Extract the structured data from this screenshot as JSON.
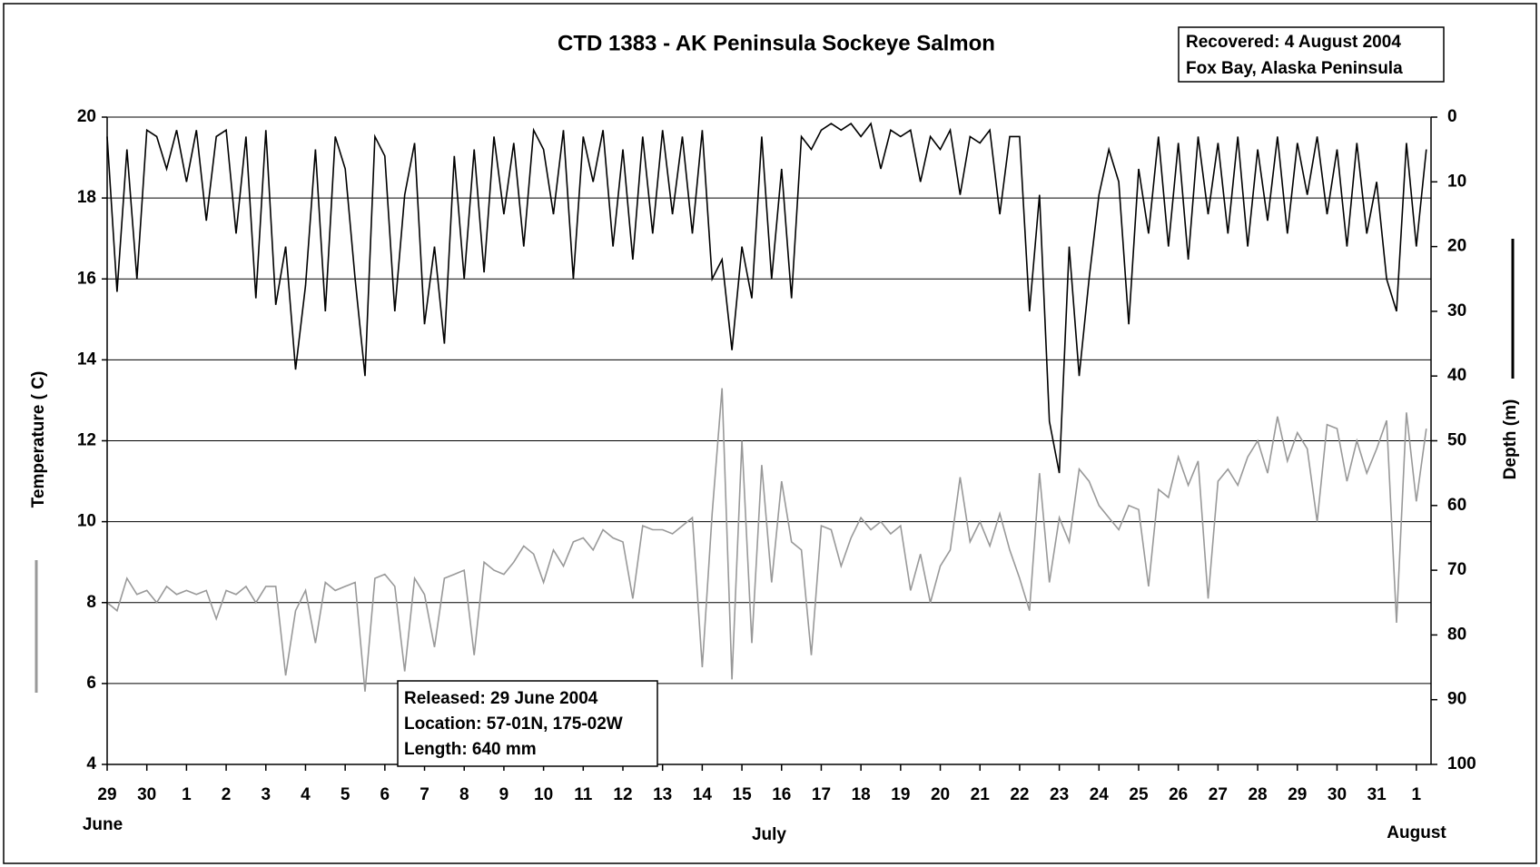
{
  "chart_data": {
    "type": "line",
    "title": "CTD 1383 - AK Peninsula Sockeye Salmon",
    "recovered_box": [
      "Recovered: 4 August 2004",
      "Fox Bay, Alaska Peninsula"
    ],
    "released_box": [
      "Released: 29 June 2004",
      "Location: 57-01N, 175-02W",
      "Length:  640 mm"
    ],
    "month_labels": [
      "June",
      "July",
      "August"
    ],
    "x": [
      0,
      0.25,
      0.5,
      0.75,
      1,
      1.25,
      1.5,
      1.75,
      2,
      2.25,
      2.5,
      2.75,
      3,
      3.25,
      3.5,
      3.75,
      4,
      4.25,
      4.5,
      4.75,
      5,
      5.25,
      5.5,
      5.75,
      6,
      6.25,
      6.5,
      6.75,
      7,
      7.25,
      7.5,
      7.75,
      8,
      8.25,
      8.5,
      8.75,
      9,
      9.25,
      9.5,
      9.75,
      10,
      10.25,
      10.5,
      10.75,
      11,
      11.25,
      11.5,
      11.75,
      12,
      12.25,
      12.5,
      12.75,
      13,
      13.25,
      13.5,
      13.75,
      14,
      14.25,
      14.5,
      14.75,
      15,
      15.25,
      15.5,
      15.75,
      16,
      16.25,
      16.5,
      16.75,
      17,
      17.25,
      17.5,
      17.75,
      18,
      18.25,
      18.5,
      18.75,
      19,
      19.25,
      19.5,
      19.75,
      20,
      20.25,
      20.5,
      20.75,
      21,
      21.25,
      21.5,
      21.75,
      22,
      22.25,
      22.5,
      22.75,
      23,
      23.25,
      23.5,
      23.75,
      24,
      24.25,
      24.5,
      24.75,
      25,
      25.25,
      25.5,
      25.75,
      26,
      26.25,
      26.5,
      26.75,
      27,
      27.25,
      27.5,
      27.75,
      28,
      28.25,
      28.5,
      28.75,
      29,
      29.25,
      29.5,
      29.75,
      30,
      30.25,
      30.5,
      30.75,
      31,
      31.25,
      31.5,
      31.75,
      32,
      32.25,
      32.5,
      32.75,
      33,
      33.25
    ],
    "series": [
      {
        "name": "Depth (m)",
        "color": "#000000",
        "axis": "y2",
        "values": [
          3,
          27,
          5,
          25,
          2,
          3,
          8,
          2,
          10,
          2,
          16,
          3,
          2,
          18,
          3,
          28,
          2,
          29,
          20,
          39,
          26,
          5,
          30,
          3,
          8,
          25,
          40,
          3,
          6,
          30,
          12,
          4,
          32,
          20,
          35,
          6,
          25,
          5,
          24,
          3,
          15,
          4,
          20,
          2,
          5,
          15,
          2,
          25,
          3,
          10,
          2,
          20,
          5,
          22,
          3,
          18,
          2,
          15,
          3,
          18,
          2,
          25,
          22,
          36,
          20,
          28,
          3,
          25,
          8,
          28,
          3,
          5,
          2,
          1,
          2,
          1,
          3,
          1,
          8,
          2,
          3,
          2,
          10,
          3,
          5,
          2,
          12,
          3,
          4,
          2,
          15,
          3,
          3,
          30,
          12,
          47,
          55,
          20,
          40,
          25,
          12,
          5,
          10,
          32,
          8,
          18,
          3,
          20,
          4,
          22,
          3,
          15,
          4,
          18,
          3,
          20,
          5,
          16,
          3,
          18,
          4,
          12,
          3,
          15,
          5,
          20,
          4,
          18,
          10,
          25,
          30,
          4,
          20,
          5
        ]
      },
      {
        "name": "Temperature ( C)",
        "color": "#999999",
        "values": [
          8.0,
          7.8,
          8.6,
          8.2,
          8.3,
          8.0,
          8.4,
          8.2,
          8.3,
          8.2,
          8.3,
          7.6,
          8.3,
          8.2,
          8.4,
          8.0,
          8.4,
          8.4,
          6.2,
          7.8,
          8.3,
          7.0,
          8.5,
          8.3,
          8.4,
          8.5,
          5.8,
          8.6,
          8.7,
          8.4,
          6.3,
          8.6,
          8.2,
          6.9,
          8.6,
          8.7,
          8.8,
          6.7,
          9.0,
          8.8,
          8.7,
          9.0,
          9.4,
          9.2,
          8.5,
          9.3,
          8.9,
          9.5,
          9.6,
          9.3,
          9.8,
          9.6,
          9.5,
          8.1,
          9.9,
          9.8,
          9.8,
          9.7,
          9.9,
          10.1,
          6.4,
          10.2,
          13.3,
          6.1,
          12.0,
          7.0,
          11.4,
          8.5,
          11.0,
          9.5,
          9.3,
          6.7,
          9.9,
          9.8,
          8.9,
          9.6,
          10.1,
          9.8,
          10.0,
          9.7,
          9.9,
          8.3,
          9.2,
          8.0,
          8.9,
          9.3,
          11.1,
          9.5,
          10.0,
          9.4,
          10.2,
          9.3,
          8.6,
          7.8,
          11.2,
          8.5,
          10.1,
          9.5,
          11.3,
          11.0,
          10.4,
          10.1,
          9.8,
          10.4,
          10.3,
          8.4,
          10.8,
          10.6,
          11.6,
          10.9,
          11.5,
          8.1,
          11.0,
          11.3,
          10.9,
          11.6,
          12.0,
          11.2,
          12.6,
          11.5,
          12.2,
          11.8,
          10.0,
          12.4,
          12.3,
          11.0,
          12.0,
          11.2,
          11.8,
          12.5,
          7.5,
          12.7,
          10.5,
          12.3
        ]
      }
    ],
    "xlim": [
      0,
      33.37
    ],
    "xticks": [
      {
        "value": 0,
        "label": "29"
      },
      {
        "value": 1,
        "label": "30"
      },
      {
        "value": 2,
        "label": "1"
      },
      {
        "value": 3,
        "label": "2"
      },
      {
        "value": 4,
        "label": "3"
      },
      {
        "value": 5,
        "label": "4"
      },
      {
        "value": 6,
        "label": "5"
      },
      {
        "value": 7,
        "label": "6"
      },
      {
        "value": 8,
        "label": "7"
      },
      {
        "value": 9,
        "label": "8"
      },
      {
        "value": 10,
        "label": "9"
      },
      {
        "value": 11,
        "label": "10"
      },
      {
        "value": 12,
        "label": "11"
      },
      {
        "value": 13,
        "label": "12"
      },
      {
        "value": 14,
        "label": "13"
      },
      {
        "value": 15,
        "label": "14"
      },
      {
        "value": 16,
        "label": "15"
      },
      {
        "value": 17,
        "label": "16"
      },
      {
        "value": 18,
        "label": "17"
      },
      {
        "value": 19,
        "label": "18"
      },
      {
        "value": 20,
        "label": "19"
      },
      {
        "value": 21,
        "label": "20"
      },
      {
        "value": 22,
        "label": "21"
      },
      {
        "value": 23,
        "label": "22"
      },
      {
        "value": 24,
        "label": "23"
      },
      {
        "value": 25,
        "label": "24"
      },
      {
        "value": 26,
        "label": "25"
      },
      {
        "value": 27,
        "label": "26"
      },
      {
        "value": 28,
        "label": "27"
      },
      {
        "value": 29,
        "label": "28"
      },
      {
        "value": 30,
        "label": "29"
      },
      {
        "value": 31,
        "label": "30"
      },
      {
        "value": 32,
        "label": "31"
      },
      {
        "value": 33,
        "label": "1"
      }
    ],
    "ylim": [
      4,
      20
    ],
    "yticks": [
      4,
      6,
      8,
      10,
      12,
      14,
      16,
      18,
      20
    ],
    "y2lim": [
      100,
      0
    ],
    "y2ticks": [
      0,
      10,
      20,
      30,
      40,
      50,
      60,
      70,
      80,
      90,
      100
    ],
    "grid": true
  }
}
